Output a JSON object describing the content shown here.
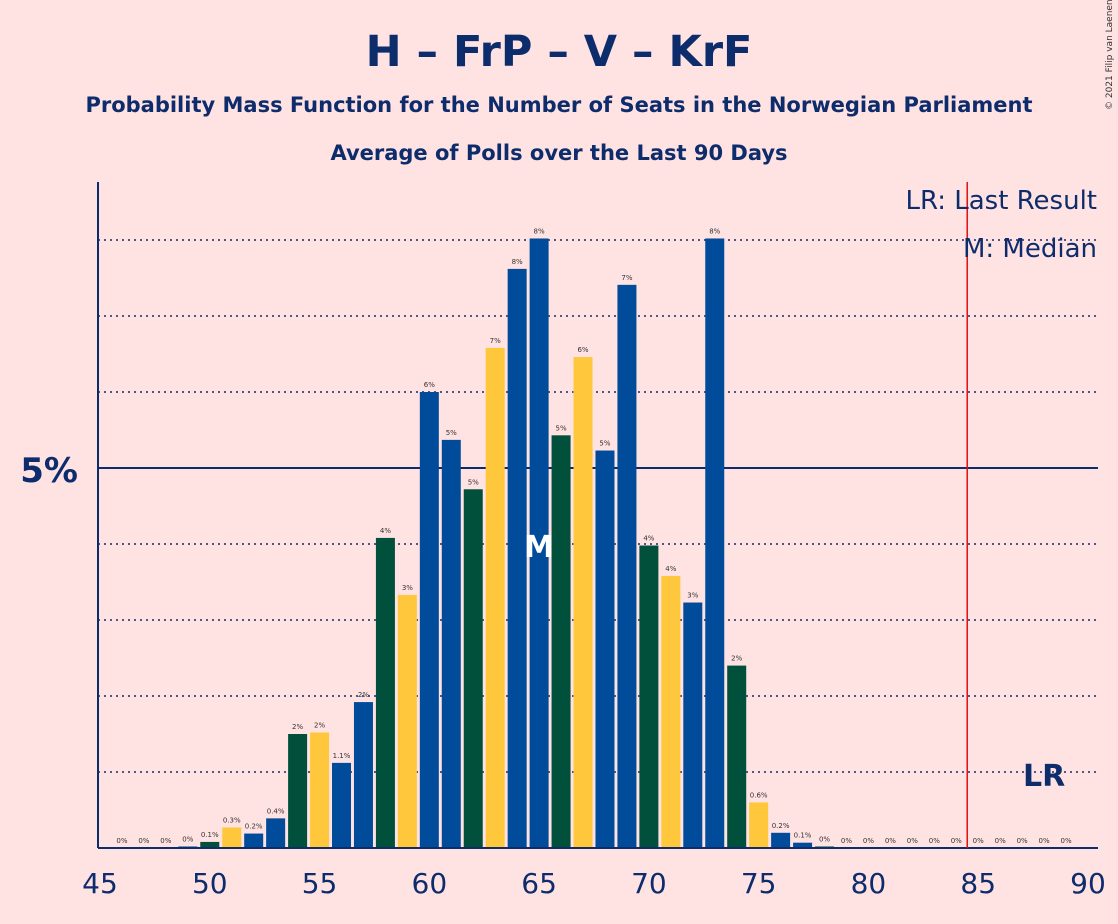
{
  "chart_data": {
    "type": "bar",
    "title": "H – FrP – V – KrF",
    "subtitle_1": "Probability Mass Function for the Number of Seats in the Norwegian Parliament",
    "subtitle_2": "Average of Polls over the Last 90 Days",
    "copyright": "© 2021 Filip van Laenen",
    "x_ticks": [
      45,
      50,
      55,
      60,
      65,
      70,
      75,
      80,
      85,
      90
    ],
    "y_tick_label": "5%",
    "y_tick_value": 5,
    "ylim": [
      0,
      8.75
    ],
    "xlim": [
      45,
      90
    ],
    "gridlines": [
      1,
      2,
      3,
      4,
      5,
      6,
      7,
      8
    ],
    "legend": {
      "last_result": "LR: Last Result",
      "median": "M: Median",
      "placement": "top-right"
    },
    "last_result_seat": 85,
    "last_result_label": "LR",
    "median_seat": 65,
    "median_label": "M",
    "colors": {
      "blue": "#004C9B",
      "green": "#00503C",
      "yellow": "#FFC83C",
      "text": "#0D2C6C",
      "lr_line": "#E01010",
      "background": "#FFE2E2"
    },
    "seats": [
      46,
      47,
      48,
      49,
      50,
      51,
      52,
      53,
      54,
      55,
      56,
      57,
      58,
      59,
      60,
      61,
      62,
      63,
      64,
      65,
      66,
      67,
      68,
      69,
      70,
      71,
      72,
      73,
      74,
      75,
      76,
      77,
      78,
      79,
      80,
      81,
      82,
      83,
      84,
      85,
      86,
      87,
      88,
      89
    ],
    "values": [
      0,
      0,
      0,
      0.02,
      0.08,
      0.27,
      0.19,
      0.39,
      1.5,
      1.52,
      1.12,
      1.92,
      4.08,
      3.33,
      6.0,
      5.37,
      4.72,
      6.58,
      7.62,
      8.02,
      5.43,
      6.46,
      5.23,
      7.41,
      3.98,
      3.58,
      3.23,
      8.02,
      2.4,
      0.6,
      0.2,
      0.07,
      0.02,
      0,
      0,
      0,
      0,
      0,
      0,
      0,
      0,
      0,
      0,
      0
    ],
    "bar_colors": [
      "blue",
      "blue",
      "blue",
      "blue",
      "green",
      "yellow",
      "blue",
      "blue",
      "green",
      "yellow",
      "blue",
      "blue",
      "green",
      "yellow",
      "blue",
      "blue",
      "green",
      "yellow",
      "blue",
      "blue",
      "green",
      "yellow",
      "blue",
      "blue",
      "green",
      "yellow",
      "blue",
      "blue",
      "green",
      "yellow",
      "blue",
      "blue",
      "green",
      "yellow",
      "blue",
      "blue",
      "green",
      "yellow",
      "blue",
      "blue",
      "green",
      "yellow",
      "blue",
      "blue"
    ],
    "labels": [
      "0%",
      "0%",
      "0%",
      "0%",
      "0.1%",
      "0.3%",
      "0.2%",
      "0.4%",
      "2%",
      "2%",
      "1.1%",
      "2%",
      "4%",
      "3%",
      "6%",
      "5%",
      "5%",
      "7%",
      "8%",
      "8%",
      "5%",
      "6%",
      "5%",
      "7%",
      "4%",
      "4%",
      "3%",
      "8%",
      "2%",
      "0.6%",
      "0.2%",
      "0.1%",
      "0%",
      "0%",
      "0%",
      "0%",
      "0%",
      "0%",
      "0%",
      "0%",
      "0%",
      "0%",
      "0%",
      "0%"
    ]
  }
}
